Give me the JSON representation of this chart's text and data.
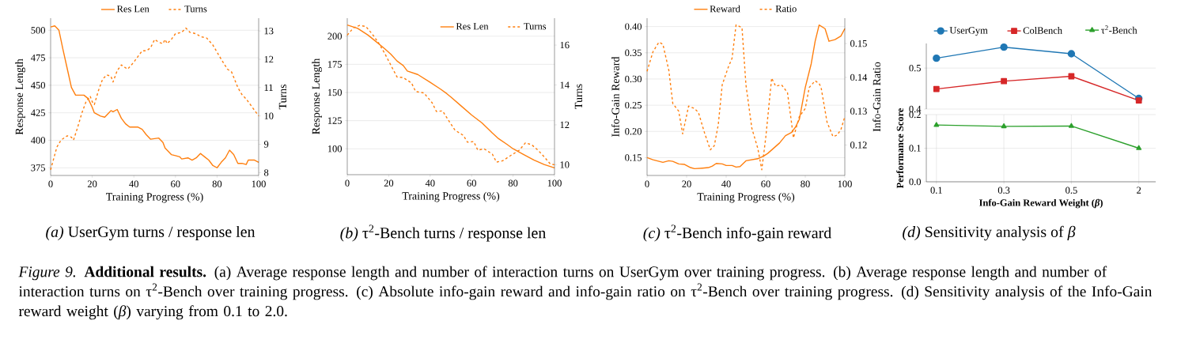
{
  "chart_data": [
    {
      "type": "line",
      "title": "*(a)* UserGym turns / response len",
      "xlabel": "Training Progress (%)",
      "ylabel": "Response Length",
      "y2label": "Turns",
      "xlim": [
        0,
        100
      ],
      "xticks": [
        0,
        20,
        40,
        60,
        80,
        100
      ],
      "ylim": [
        368,
        511
      ],
      "yticks": [
        375,
        400,
        425,
        450,
        475,
        500
      ],
      "y2lim": [
        7.9,
        13.45
      ],
      "y2ticks": [
        8,
        9,
        10,
        11,
        12,
        13
      ],
      "grid": "y",
      "legend": "top",
      "annotations": [
        "*Figure 9.* **Additional results.** (a) Average response length and number of interaction turns on UserGym over training progress. (b) Average response length and number of interaction turns on τ$^{2}$-Bench over training progress. (c) Absolute info-gain reward and info-gain ratio on τ$^{2}$-Bench over training progress. (d) Sensitivity analysis of the Info-Gain reward weight (*β*) varying from 0.1 to 2.0."
      ],
      "series": [
        {
          "name": "Res Len",
          "color": "#ff7f0e",
          "line_style": "solid",
          "x": [
            0,
            2,
            4,
            6,
            8,
            10,
            12,
            14,
            16,
            18,
            20,
            21,
            24,
            26,
            28,
            29,
            30,
            32,
            34,
            36,
            38,
            40,
            42,
            44,
            46,
            48,
            52,
            54,
            55,
            58,
            60,
            62,
            63,
            66,
            68,
            70,
            72,
            74,
            76,
            78,
            80,
            82,
            84,
            86,
            88,
            90,
            92,
            94,
            95,
            98,
            100
          ],
          "values": [
            503,
            504,
            500,
            482,
            465,
            448,
            441,
            441,
            441,
            438,
            430,
            425,
            422,
            421,
            425,
            427,
            426,
            428,
            420,
            415,
            412,
            412,
            412,
            410,
            405,
            401,
            402,
            398,
            393,
            387,
            386,
            385,
            383,
            384,
            382,
            384,
            388,
            385,
            382,
            377,
            375,
            380,
            384,
            391,
            387,
            379,
            379,
            378,
            382,
            382,
            380
          ]
        },
        {
          "name": "Turns",
          "color": "#ff7f0e",
          "line_style": "dashed",
          "axis": "y2",
          "x": [
            0,
            3,
            5,
            8,
            10,
            11,
            13,
            15,
            17,
            19,
            20,
            21,
            23,
            25,
            27,
            29,
            30,
            32,
            34,
            37,
            40,
            42,
            44,
            46,
            48,
            50,
            52,
            54,
            55,
            56,
            58,
            60,
            63,
            65,
            67,
            70,
            72,
            75,
            78,
            80,
            82,
            85,
            87,
            90,
            92,
            94,
            97,
            100
          ],
          "values": [
            8.1,
            8.9,
            9.15,
            9.3,
            9.25,
            9.15,
            9.6,
            10.1,
            10.5,
            10.7,
            10.5,
            10.4,
            10.9,
            11.3,
            11.45,
            11.4,
            11.2,
            11.6,
            11.8,
            11.65,
            11.9,
            12.1,
            12.3,
            12.3,
            12.4,
            12.7,
            12.6,
            12.55,
            12.7,
            12.55,
            12.7,
            12.9,
            12.95,
            13.1,
            12.95,
            12.9,
            12.8,
            12.75,
            12.5,
            12.25,
            12.0,
            11.65,
            11.55,
            11.0,
            10.75,
            10.6,
            10.3,
            10.0
          ]
        }
      ]
    },
    {
      "type": "line",
      "title": "*(b)* τ$^{2}$-Bench turns / response len",
      "xlabel": "Training Progress (%)",
      "ylabel": "Response Length",
      "y2label": "Turns",
      "xlim": [
        0,
        100
      ],
      "xticks": [
        0,
        20,
        40,
        60,
        80,
        100
      ],
      "ylim": [
        77,
        216
      ],
      "yticks": [
        100,
        125,
        150,
        175,
        200
      ],
      "y2lim": [
        9.5,
        17.35
      ],
      "y2ticks": [
        10,
        12,
        14,
        16
      ],
      "grid": "y",
      "legend": "top right",
      "series": [
        {
          "name": "Res Len",
          "color": "#ff7f0e",
          "line_style": "solid",
          "x": [
            0,
            5,
            10,
            14,
            18,
            21,
            24,
            27,
            29,
            34,
            40,
            45,
            48,
            50,
            55,
            60,
            65,
            70,
            73,
            77,
            80,
            85,
            90,
            95,
            100
          ],
          "values": [
            210,
            207,
            201,
            195,
            189,
            184,
            178,
            174,
            169,
            166,
            159,
            153,
            149,
            146,
            138,
            130,
            123,
            114,
            109,
            104,
            100,
            95,
            90,
            86,
            83
          ]
        },
        {
          "name": "Turns",
          "color": "#ff7f0e",
          "line_style": "dashed",
          "axis": "y2",
          "x": [
            0,
            3,
            6,
            9,
            12,
            15,
            18,
            20,
            24,
            27,
            31,
            33,
            37,
            41,
            43,
            46,
            49,
            52,
            56,
            58,
            61,
            63,
            66,
            70,
            72,
            75,
            79,
            83,
            86,
            89,
            92,
            95,
            98,
            100
          ],
          "values": [
            16.5,
            16.87,
            16.99,
            16.93,
            16.56,
            16.13,
            15.6,
            15.2,
            14.4,
            14.37,
            14.1,
            13.67,
            13.6,
            13.1,
            12.67,
            12.7,
            12.2,
            11.73,
            11.47,
            11.13,
            11.16,
            10.73,
            10.8,
            10.53,
            10.13,
            10.2,
            10.47,
            10.73,
            11.1,
            11.0,
            10.73,
            10.4,
            10.03,
            10.0
          ]
        }
      ]
    },
    {
      "type": "line",
      "title": "*(c)* τ$^{2}$-Bench info-gain reward",
      "xlabel": "Training Progress (%)",
      "ylabel": "Info-Gain Reward",
      "y2label": "Info-Gain Ratio",
      "xlim": [
        0,
        100
      ],
      "xticks": [
        0,
        20,
        40,
        60,
        80,
        100
      ],
      "ylim": [
        0.116,
        0.416
      ],
      "yticks": [
        0.15,
        {
          "value": 0.2,
          "label": "0.20"
        },
        0.25,
        {
          "value": 0.3,
          "label": "0.30"
        },
        0.35,
        {
          "value": 0.4,
          "label": "0.40"
        }
      ],
      "y2lim": [
        0.111,
        0.1575
      ],
      "y2ticks": [
        0.12,
        0.13,
        0.14,
        0.15
      ],
      "grid": "y",
      "legend": "top",
      "series": [
        {
          "name": "Reward",
          "color": "#ff7f0e",
          "line_style": "solid",
          "x": [
            0,
            3,
            8,
            11,
            13,
            16,
            19,
            22,
            24,
            28,
            31,
            33,
            35,
            38,
            40,
            43,
            45,
            47,
            50,
            53,
            56,
            59,
            61,
            64,
            67,
            70,
            73,
            75,
            77,
            80,
            83,
            85,
            87,
            90,
            92,
            95,
            98,
            100
          ],
          "values": [
            0.15,
            0.146,
            0.141,
            0.144,
            0.143,
            0.138,
            0.137,
            0.131,
            0.129,
            0.13,
            0.131,
            0.134,
            0.139,
            0.138,
            0.135,
            0.135,
            0.132,
            0.133,
            0.144,
            0.146,
            0.148,
            0.153,
            0.158,
            0.168,
            0.178,
            0.192,
            0.198,
            0.208,
            0.223,
            0.284,
            0.329,
            0.372,
            0.403,
            0.396,
            0.372,
            0.375,
            0.382,
            0.396
          ]
        },
        {
          "name": "Ratio",
          "color": "#ff7f0e",
          "line_style": "dashed",
          "axis": "y2",
          "x": [
            0,
            3,
            6,
            8,
            11,
            13,
            16,
            18,
            21,
            24,
            26,
            29,
            32,
            34,
            36,
            38,
            41,
            43,
            45,
            48,
            50,
            53,
            56,
            58,
            60,
            63,
            65,
            68,
            71,
            73,
            74,
            77,
            80,
            82,
            85,
            87,
            88,
            91,
            94,
            96,
            98,
            100
          ],
          "values": [
            0.1418,
            0.1476,
            0.1504,
            0.1498,
            0.1421,
            0.1323,
            0.13,
            0.1233,
            0.1315,
            0.1308,
            0.1296,
            0.1237,
            0.1186,
            0.1198,
            0.126,
            0.1378,
            0.1429,
            0.1457,
            0.1555,
            0.1547,
            0.1378,
            0.1249,
            0.119,
            0.1127,
            0.1221,
            0.1398,
            0.1374,
            0.1378,
            0.1355,
            0.1268,
            0.1221,
            0.1284,
            0.1308,
            0.137,
            0.139,
            0.1382,
            0.137,
            0.1268,
            0.1225,
            0.1229,
            0.1245,
            0.1284
          ]
        }
      ]
    },
    {
      "type": "line",
      "categories": [
        "0.1",
        "0.3",
        "0.5",
        "2"
      ],
      "ylim": [
        0.4,
        0.56
      ],
      "yticks": [
        0.4,
        0.5
      ],
      "tick_labels": "y",
      "grid": true,
      "legend": "top",
      "series": [
        {
          "name": "UserGym",
          "color": "#1f77b4",
          "marker": "circle",
          "values": [
            0.524,
            0.551,
            0.535,
            0.426
          ]
        },
        {
          "name": "ColBench",
          "color": "#d62728",
          "marker": "square",
          "values": [
            0.449,
            0.468,
            0.48,
            0.421
          ]
        }
      ]
    },
    {
      "type": "line",
      "title": "*(d)* Sensitivity analysis of *β*",
      "categories": [
        "0.1",
        "0.3",
        "0.5",
        "2"
      ],
      "xlabel": "Info-Gain Reward Weight (*β*)",
      "ylabel": "Performance Score",
      "ylim": [
        0,
        0.2
      ],
      "yticks": [
        {
          "value": 0,
          "label": "0.0"
        },
        0.1,
        0.2
      ],
      "grid": true,
      "legend": "top",
      "series": [
        {
          "name": "τ$^{2}$-Bench",
          "color": "#2ca02c",
          "marker": "triangle",
          "values": [
            0.169,
            0.165,
            0.166,
            0.1
          ]
        }
      ]
    }
  ]
}
